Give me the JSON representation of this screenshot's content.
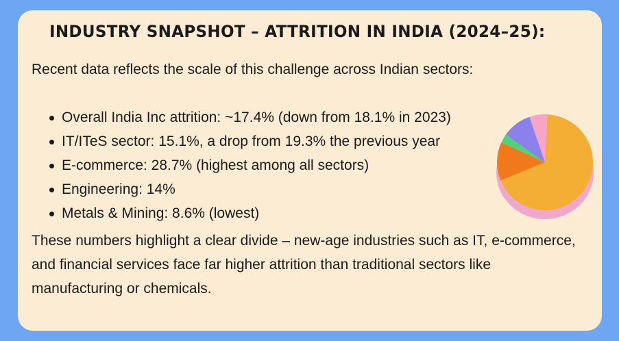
{
  "title": "INDUSTRY SNAPSHOT – ATTRITION IN INDIA (2024–25):",
  "intro": "Recent data reflects the scale of this challenge across Indian sectors:",
  "bullets": [
    "Overall India Inc attrition: ~17.4% (down from 18.1% in 2023)",
    "IT/ITeS sector: 15.1%, a drop from 19.3% the previous year",
    "E-commerce: 28.7% (highest among all sectors)",
    "Engineering: 14%",
    "Metals & Mining: 8.6% (lowest)"
  ],
  "conclusion": "These numbers highlight a clear divide – new-age industries such as IT, e-commerce, and financial services face far higher attrition than traditional sectors like manufacturing or chemicals.",
  "colors": {
    "page_background": "#6ea6f2",
    "card_background": "#fdecd4",
    "text": "#1a1a1a",
    "pie_shadow": "#f0a8cc",
    "pie_slices": [
      "#f3ae33",
      "#f07a1a",
      "#4fd27a",
      "#8a82ea",
      "#f4a5c8"
    ]
  },
  "decoration": {
    "icon": "pie-chart-icon",
    "slice_percent": [
      68,
      13,
      3,
      10,
      6
    ]
  }
}
